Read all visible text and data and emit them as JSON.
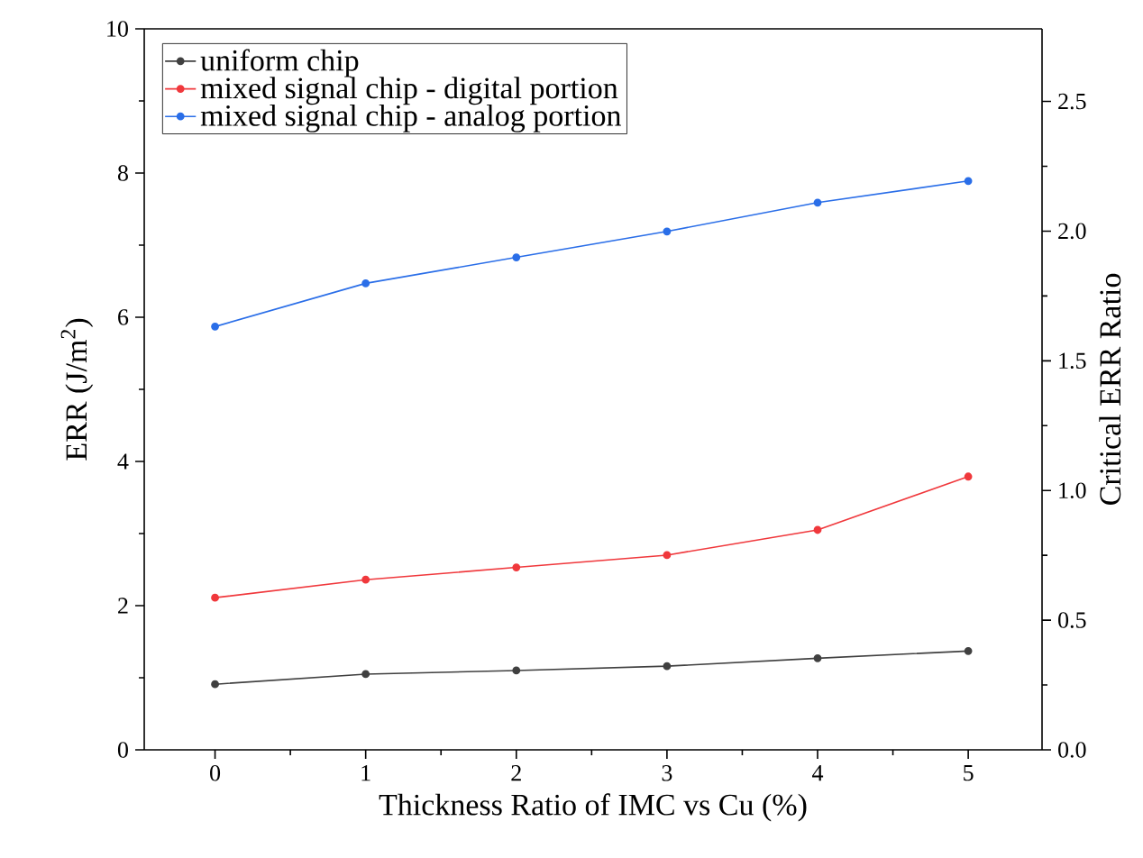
{
  "chart_data": {
    "type": "line",
    "xlabel": "Thickness Ratio of IMC vs Cu (%)",
    "ylabel": "ERR (J/m$^{2}$)",
    "y2label": "Critical ERR Ratio",
    "x": [
      0,
      1,
      2,
      3,
      4,
      5
    ],
    "series": [
      {
        "name": "uniform chip",
        "color": "#404040",
        "values": [
          0.91,
          1.05,
          1.1,
          1.16,
          1.27,
          1.37
        ]
      },
      {
        "name": "mixed signal chip - digital portion",
        "color": "#f0383c",
        "values": [
          2.11,
          2.36,
          2.53,
          2.7,
          3.05,
          3.79
        ]
      },
      {
        "name": "mixed signal chip - analog portion",
        "color": "#2a6ee8",
        "values": [
          5.87,
          6.47,
          6.83,
          7.19,
          7.59,
          7.89
        ]
      }
    ],
    "xlim": [
      -0.47,
      5.49
    ],
    "xticks": [
      0,
      1,
      2,
      3,
      4,
      5
    ],
    "ylim": [
      0,
      10
    ],
    "yticks": [
      0,
      2,
      4,
      6,
      8,
      10
    ],
    "y2lim": [
      0,
      2.78
    ],
    "y2ticks": [
      {
        "value": 0,
        "label": "0.0"
      },
      {
        "value": 0.5,
        "label": "0.5"
      },
      {
        "value": 1,
        "label": "1.0"
      },
      {
        "value": 1.5,
        "label": "1.5"
      },
      {
        "value": 2,
        "label": "2.0"
      },
      {
        "value": 2.5,
        "label": "2.5"
      }
    ],
    "legend": "top left",
    "marker": "circle",
    "line_style": "solid",
    "grid": false
  }
}
